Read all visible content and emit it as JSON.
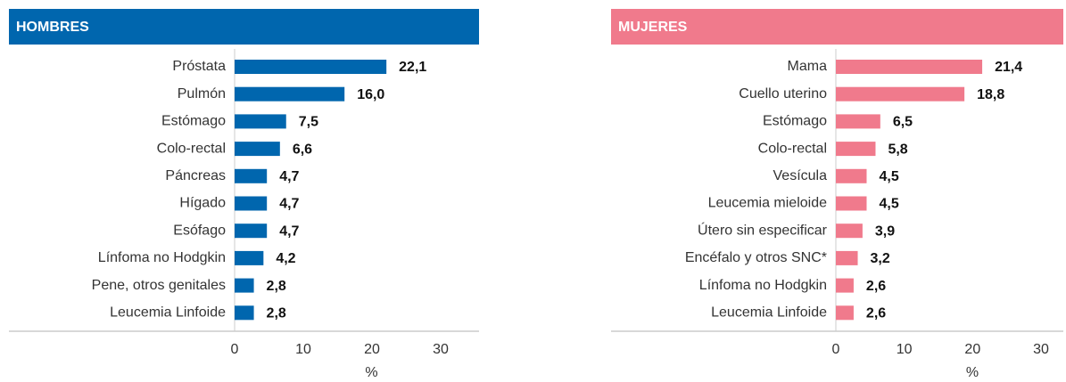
{
  "chart_data": [
    {
      "type": "bar",
      "orientation": "horizontal",
      "title": "HOMBRES",
      "color": "#0066ae",
      "categories": [
        "Próstata",
        "Pulmón",
        "Estómago",
        "Colo-rectal",
        "Páncreas",
        "Hígado",
        "Esófago",
        "Línfoma no Hodgkin",
        "Pene, otros genitales",
        "Leucemia Linfoide"
      ],
      "values": [
        22.1,
        16.0,
        7.5,
        6.6,
        4.7,
        4.7,
        4.7,
        4.2,
        2.8,
        2.8
      ],
      "value_labels": [
        "22,1",
        "16,0",
        "7,5",
        "6,6",
        "4,7",
        "4,7",
        "4,7",
        "4,2",
        "2,8",
        "2,8"
      ],
      "xlim": [
        0,
        30
      ],
      "xticks": [
        0,
        10,
        20,
        30
      ],
      "xlabel": "%"
    },
    {
      "type": "bar",
      "orientation": "horizontal",
      "title": "MUJERES",
      "color": "#f07a8c",
      "categories": [
        "Mama",
        "Cuello uterino",
        "Estómago",
        "Colo-rectal",
        "Vesícula",
        "Leucemia mieloide",
        "Útero sin especificar",
        "Encéfalo y otros SNC*",
        "Línfoma no Hodgkin",
        "Leucemia Linfoide"
      ],
      "values": [
        21.4,
        18.8,
        6.5,
        5.8,
        4.5,
        4.5,
        3.9,
        3.2,
        2.6,
        2.6
      ],
      "value_labels": [
        "21,4",
        "18,8",
        "6,5",
        "5,8",
        "4,5",
        "4,5",
        "3,9",
        "3,2",
        "2,6",
        "2,6"
      ],
      "xlim": [
        0,
        30
      ],
      "xticks": [
        0,
        10,
        20,
        30
      ],
      "xlabel": "%"
    }
  ]
}
